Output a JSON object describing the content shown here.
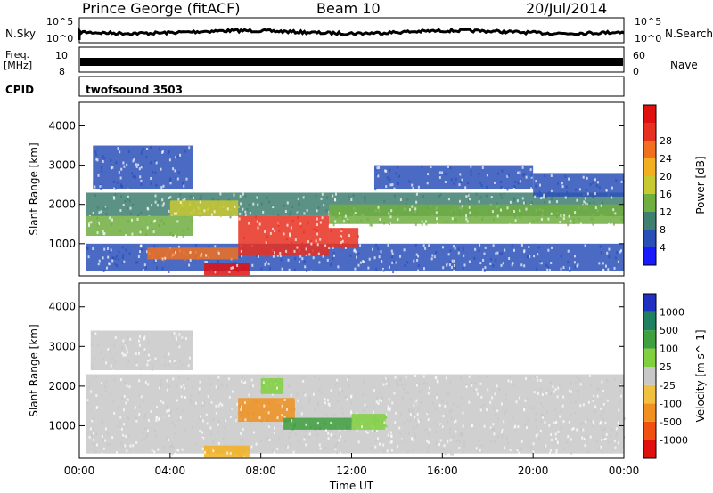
{
  "header": {
    "title": "Prince George (fitACF)",
    "beam": "Beam 10",
    "date": "20/Jul/2014"
  },
  "noise_panel": {
    "left_label": "N.Sky",
    "left_ticks": [
      "10^5",
      "10^0"
    ],
    "right_ticks": [
      "10^5",
      "10^0"
    ],
    "right_label": "N.Search"
  },
  "freq_panel": {
    "left_label_1": "Freq.",
    "left_label_2": "[MHz]",
    "left_ticks": [
      "10",
      "8"
    ],
    "right_ticks": [
      "60",
      "0"
    ],
    "right_label": "Nave"
  },
  "cpid_panel": {
    "label": "CPID",
    "program": "twofsound 3503"
  },
  "chart_data": [
    {
      "type": "heatmap",
      "name": "power",
      "ylabel": "Slant Range [km]",
      "ylim": [
        180,
        4600
      ],
      "yticks": [
        1000,
        2000,
        3000,
        4000
      ],
      "xlim_hours": [
        0,
        24
      ],
      "colorbar_label": "Power [dB]",
      "colorbar_ticks": [
        "4",
        "8",
        "12",
        "16",
        "20",
        "24",
        "28"
      ],
      "colorbar_colors": [
        "#1a1aff",
        "#2a50b8",
        "#3f7f70",
        "#6fae3f",
        "#c8c830",
        "#f2b020",
        "#f07020",
        "#e83020",
        "#e01010"
      ],
      "bands": [
        {
          "t0": 0.3,
          "t1": 24,
          "r0": 300,
          "r1": 1000,
          "color": "#2a50b8"
        },
        {
          "t0": 0.3,
          "t1": 24,
          "r0": 1700,
          "r1": 2300,
          "color": "#3f7f70"
        },
        {
          "t0": 0.3,
          "t1": 5,
          "r0": 1200,
          "r1": 1700,
          "color": "#6fae3f"
        },
        {
          "t0": 3,
          "t1": 7,
          "r0": 600,
          "r1": 900,
          "color": "#f07020"
        },
        {
          "t0": 5.5,
          "t1": 7.5,
          "r0": 200,
          "r1": 500,
          "color": "#e01010"
        },
        {
          "t0": 7,
          "t1": 11,
          "r0": 700,
          "r1": 1700,
          "color": "#e83020"
        },
        {
          "t0": 11,
          "t1": 12.3,
          "r0": 900,
          "r1": 1400,
          "color": "#e83020"
        },
        {
          "t0": 4,
          "t1": 7,
          "r0": 1700,
          "r1": 2100,
          "color": "#c8c830"
        },
        {
          "t0": 11,
          "t1": 24,
          "r0": 1500,
          "r1": 2000,
          "color": "#6fae3f"
        },
        {
          "t0": 0.6,
          "t1": 5,
          "r0": 2400,
          "r1": 3500,
          "color": "#2a50b8"
        },
        {
          "t0": 13,
          "t1": 20,
          "r0": 2400,
          "r1": 3000,
          "color": "#2a50b8"
        },
        {
          "t0": 20,
          "t1": 24,
          "r0": 2200,
          "r1": 2800,
          "color": "#2a50b8"
        }
      ]
    },
    {
      "type": "heatmap",
      "name": "velocity",
      "ylabel": "Slant Range [km]",
      "ylim": [
        180,
        4600
      ],
      "yticks": [
        1000,
        2000,
        3000,
        4000
      ],
      "xlim_hours": [
        0,
        24
      ],
      "xticks": [
        "00:00",
        "04:00",
        "08:00",
        "12:00",
        "16:00",
        "20:00",
        "00:00"
      ],
      "xlabel": "Time UT",
      "colorbar_label": "Velocity [m s^-1]",
      "colorbar_ticks": [
        "-1000",
        "-500",
        "-100",
        "-25",
        "25",
        "100",
        "500",
        "1000"
      ],
      "colorbar_colors": [
        "#e01010",
        "#f05010",
        "#f09020",
        "#f2c040",
        "#c8c8c8",
        "#80d040",
        "#40a040",
        "#208060",
        "#2030c0"
      ],
      "bands": [
        {
          "t0": 0.3,
          "t1": 24,
          "r0": 300,
          "r1": 2300,
          "color": "#c8c8c8"
        },
        {
          "t0": 0.5,
          "t1": 5,
          "r0": 2400,
          "r1": 3400,
          "color": "#c8c8c8"
        },
        {
          "t0": 5.5,
          "t1": 7.5,
          "r0": 200,
          "r1": 500,
          "color": "#f2b020"
        },
        {
          "t0": 7,
          "t1": 9.5,
          "r0": 1100,
          "r1": 1700,
          "color": "#f09020"
        },
        {
          "t0": 9,
          "t1": 12,
          "r0": 900,
          "r1": 1200,
          "color": "#40a040"
        },
        {
          "t0": 12,
          "t1": 13.5,
          "r0": 900,
          "r1": 1300,
          "color": "#80d040"
        },
        {
          "t0": 8,
          "t1": 9,
          "r0": 1800,
          "r1": 2200,
          "color": "#80d040"
        }
      ]
    }
  ]
}
